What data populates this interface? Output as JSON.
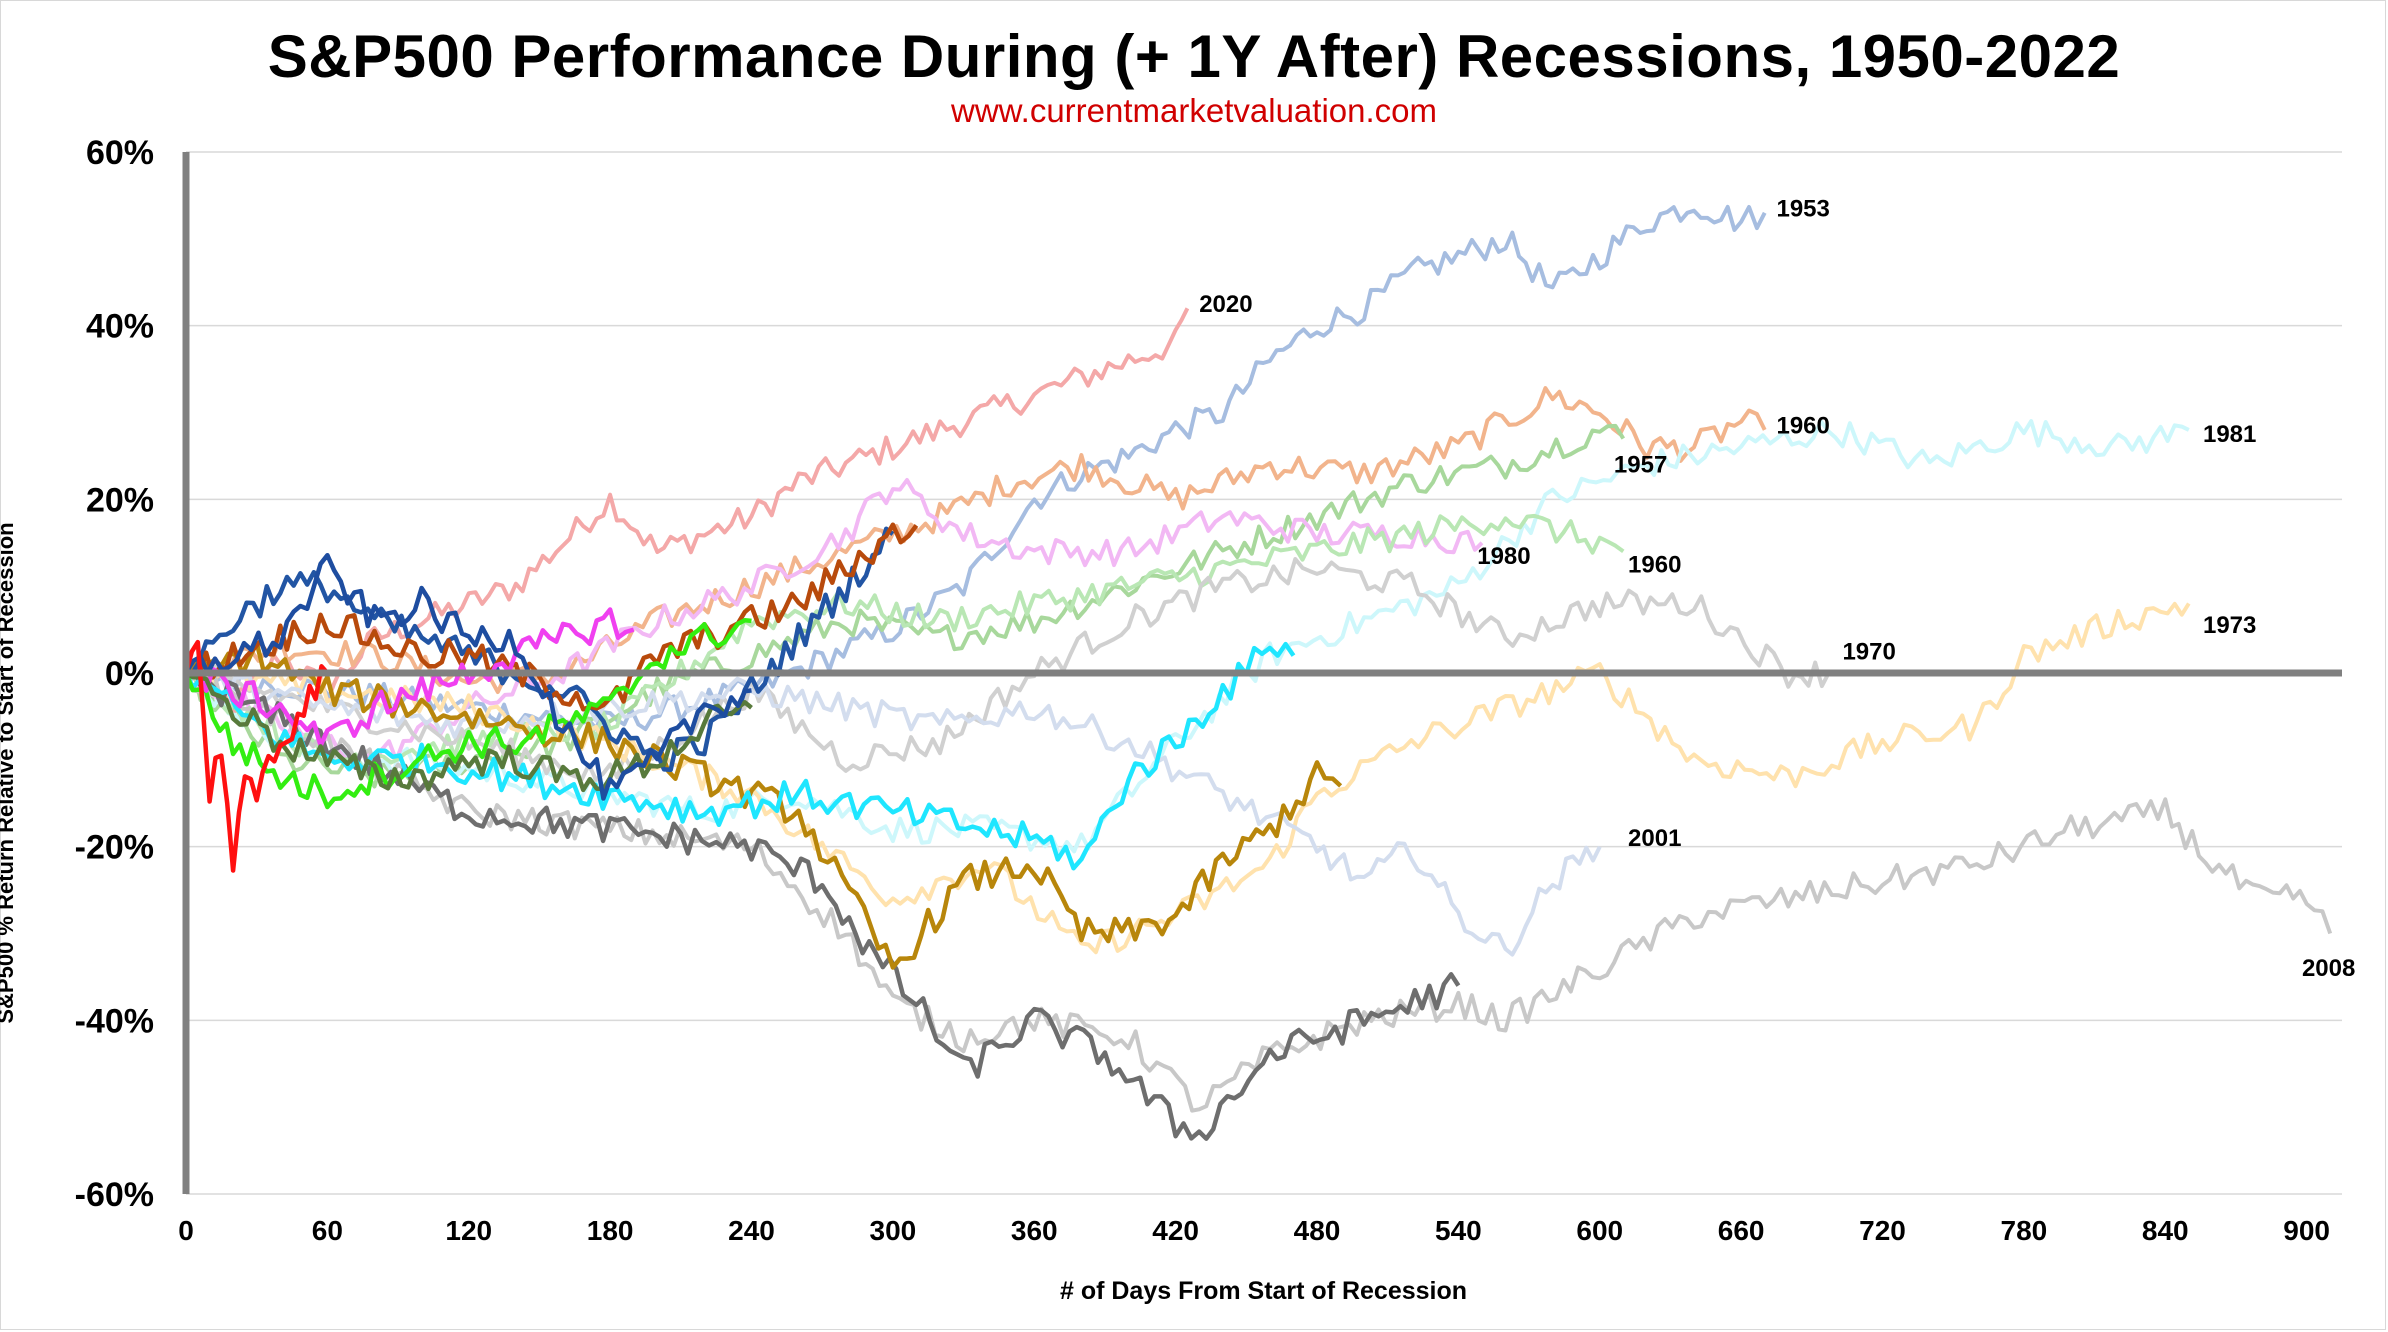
{
  "chart_data": {
    "type": "line",
    "title": "S&P500 Performance During (+ 1Y After) Recessions, 1950-2022",
    "subtitle": "www.currentmarketvaluation.com",
    "xlabel": "# of Days From Start of Recession",
    "ylabel": "S&P500 % Return Relative to Start of Recession",
    "xlim": [
      0,
      915
    ],
    "ylim": [
      -60,
      60
    ],
    "x_ticks": [
      "0",
      "60",
      "120",
      "180",
      "240",
      "300",
      "360",
      "420",
      "480",
      "540",
      "600",
      "660",
      "720",
      "780",
      "840",
      "900"
    ],
    "y_ticks": [
      "60%",
      "40%",
      "20%",
      "0%",
      "-20%",
      "-40%",
      "-60%"
    ],
    "grid": "horizontal",
    "series": [
      {
        "name": "2020",
        "color": "#f4a8a8",
        "x": [
          0,
          20,
          40,
          60,
          80,
          100,
          120,
          140,
          160,
          180,
          200,
          220,
          240,
          260,
          280,
          300,
          320,
          340,
          360,
          380,
          400,
          420,
          425
        ],
        "y": [
          0,
          -4,
          2,
          -2,
          4,
          6,
          8,
          10,
          15,
          20,
          14,
          16,
          18,
          22,
          24,
          26,
          28,
          30,
          32,
          34,
          36,
          38,
          42
        ]
      },
      {
        "name": "1953",
        "color": "#a6bde0",
        "x": [
          0,
          60,
          120,
          180,
          240,
          300,
          330,
          360,
          380,
          400,
          420,
          440,
          460,
          480,
          500,
          520,
          540,
          560,
          580,
          600,
          620,
          640,
          660,
          670
        ],
        "y": [
          0,
          -2,
          -4,
          -6,
          -2,
          5,
          10,
          20,
          23,
          25,
          28,
          30,
          36,
          40,
          42,
          46,
          48,
          50,
          44,
          48,
          52,
          54,
          52,
          53
        ]
      },
      {
        "name": "1960",
        "color": "#f2b48c",
        "x": [
          0,
          40,
          80,
          120,
          160,
          200,
          240,
          280,
          320,
          350,
          380,
          420,
          460,
          500,
          540,
          580,
          600,
          620,
          640,
          660,
          670
        ],
        "y": [
          0,
          3,
          2,
          -1,
          0,
          6,
          10,
          14,
          18,
          22,
          24,
          20,
          24,
          23,
          26,
          32,
          30,
          26,
          26,
          29,
          28
        ]
      },
      {
        "name": "1957",
        "color": "#a8d89c",
        "x": [
          0,
          40,
          80,
          120,
          160,
          200,
          240,
          280,
          320,
          360,
          400,
          440,
          480,
          520,
          560,
          600,
          610
        ],
        "y": [
          0,
          -10,
          -12,
          -10,
          -8,
          -2,
          2,
          6,
          4,
          6,
          10,
          14,
          18,
          22,
          24,
          28,
          27
        ]
      },
      {
        "name": "1981",
        "color": "#cdf7fb",
        "x": [
          0,
          30,
          60,
          100,
          140,
          180,
          220,
          260,
          300,
          340,
          380,
          420,
          460,
          500,
          540,
          580,
          620,
          660,
          700,
          740,
          780,
          820,
          850
        ],
        "y": [
          0,
          -6,
          -10,
          -10,
          -12,
          -14,
          -16,
          -14,
          -18,
          -18,
          -20,
          -8,
          2,
          6,
          10,
          20,
          24,
          26,
          28,
          24,
          28,
          26,
          28
        ]
      },
      {
        "name": "1980",
        "color": "#f2b8f4",
        "x": [
          0,
          40,
          80,
          120,
          160,
          200,
          240,
          280,
          300,
          330,
          360,
          400,
          440,
          480,
          520,
          550
        ],
        "y": [
          0,
          -6,
          -10,
          -4,
          0,
          6,
          10,
          16,
          22,
          16,
          14,
          14,
          18,
          16,
          16,
          15
        ]
      },
      {
        "name": "1960b",
        "color": "#b9e7b4",
        "x": [
          0,
          60,
          120,
          180,
          240,
          280,
          320,
          360,
          400,
          440,
          480,
          520,
          560,
          600,
          610
        ],
        "y": [
          0,
          -10,
          -8,
          -6,
          6,
          8,
          6,
          8,
          10,
          12,
          14,
          16,
          18,
          15,
          14
        ]
      },
      {
        "name": "1970",
        "color": "#d0d0d0",
        "x": [
          0,
          60,
          120,
          180,
          240,
          280,
          320,
          360,
          400,
          440,
          480,
          520,
          560,
          600,
          640,
          680,
          700
        ],
        "y": [
          0,
          -4,
          -8,
          -12,
          -2,
          -10,
          -8,
          0,
          6,
          10,
          12,
          10,
          4,
          8,
          8,
          0,
          0
        ]
      },
      {
        "name": "1973",
        "color": "#ffe2ad",
        "x": [
          0,
          60,
          120,
          180,
          240,
          300,
          340,
          380,
          420,
          460,
          480,
          520,
          560,
          600,
          640,
          680,
          720,
          760,
          780,
          820,
          850
        ],
        "y": [
          0,
          -2,
          -4,
          -8,
          -14,
          -26,
          -22,
          -32,
          -28,
          -22,
          -14,
          -8,
          -4,
          0,
          -10,
          -12,
          -8,
          -6,
          2,
          6,
          8
        ]
      },
      {
        "name": "2001",
        "color": "#d3ddee",
        "x": [
          0,
          60,
          120,
          180,
          240,
          280,
          320,
          360,
          400,
          440,
          480,
          500,
          520,
          540,
          560,
          580,
          600
        ],
        "y": [
          0,
          -4,
          -6,
          -4,
          -2,
          -4,
          -6,
          -4,
          -8,
          -14,
          -20,
          -24,
          -20,
          -28,
          -32,
          -24,
          -20
        ]
      },
      {
        "name": "2008",
        "color": "#c8c8c8",
        "x": [
          0,
          60,
          120,
          180,
          240,
          280,
          300,
          330,
          360,
          400,
          430,
          460,
          500,
          540,
          560,
          600,
          640,
          680,
          720,
          760,
          800,
          840,
          860,
          880,
          900,
          910
        ],
        "y": [
          0,
          -8,
          -16,
          -18,
          -20,
          -30,
          -38,
          -42,
          -40,
          -42,
          -50,
          -44,
          -40,
          -38,
          -40,
          -34,
          -28,
          -26,
          -24,
          -22,
          -18,
          -16,
          -22,
          -26,
          -26,
          -30
        ]
      }
    ]
  },
  "labels": {
    "s2020": "2020",
    "s1953": "1953",
    "s1960": "1960",
    "s1957": "1957",
    "s1981": "1981",
    "s1980": "1980",
    "s1960b": "1960",
    "s1970": "1970",
    "s1973": "1973",
    "s2001": "2001",
    "s2008": "2008"
  }
}
